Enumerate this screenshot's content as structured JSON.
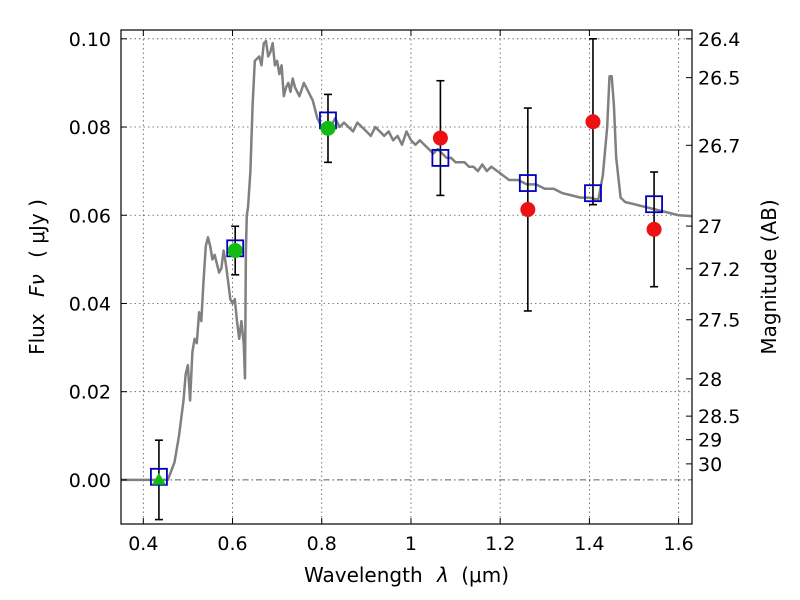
{
  "chart_data": {
    "type": "scatter",
    "xlabel_prefix": "Wavelength",
    "xlabel_symbol": "λ",
    "xlabel_unit": "(μm)",
    "ylabel_prefix": "Flux",
    "ylabel_symbol": "Fν",
    "ylabel_unit": "( μJy )",
    "y2label": "Magnitude (AB)",
    "xlim": [
      0.35,
      1.63
    ],
    "ylim": [
      -0.01,
      0.102
    ],
    "x_ticks": [
      {
        "value": 0.4,
        "label": "0.4"
      },
      {
        "value": 0.6,
        "label": "0.6"
      },
      {
        "value": 0.8,
        "label": "0.8"
      },
      {
        "value": 1.0,
        "label": "1"
      },
      {
        "value": 1.2,
        "label": "1.2"
      },
      {
        "value": 1.4,
        "label": "1.4"
      },
      {
        "value": 1.6,
        "label": "1.6"
      }
    ],
    "y_ticks": [
      {
        "value": 0.0,
        "label": "0.00"
      },
      {
        "value": 0.02,
        "label": "0.02"
      },
      {
        "value": 0.04,
        "label": "0.04"
      },
      {
        "value": 0.06,
        "label": "0.06"
      },
      {
        "value": 0.08,
        "label": "0.08"
      },
      {
        "value": 0.1,
        "label": "0.10"
      }
    ],
    "y2_ticks": [
      {
        "value": 26.4,
        "label": "26.4"
      },
      {
        "value": 26.5,
        "label": "26.5"
      },
      {
        "value": 26.7,
        "label": "26.7"
      },
      {
        "value": 27.0,
        "label": "27"
      },
      {
        "value": 27.2,
        "label": "27.2"
      },
      {
        "value": 27.5,
        "label": "27.5"
      },
      {
        "value": 28.0,
        "label": "28"
      },
      {
        "value": 28.5,
        "label": "28.5"
      },
      {
        "value": 29.0,
        "label": "29"
      },
      {
        "value": 30.0,
        "label": "30"
      }
    ],
    "grid": true,
    "colors": {
      "model": "#808080",
      "observed_optical": "#11bb11",
      "observed_nir": "#ee1111",
      "model_photometry": "#0000bb",
      "errorbar": "#000000"
    },
    "model_spectrum": [
      [
        0.35,
        0.0
      ],
      [
        0.44,
        0.0
      ],
      [
        0.455,
        0.0
      ],
      [
        0.47,
        0.004
      ],
      [
        0.48,
        0.01
      ],
      [
        0.49,
        0.018
      ],
      [
        0.495,
        0.024
      ],
      [
        0.5,
        0.026
      ],
      [
        0.505,
        0.018
      ],
      [
        0.51,
        0.029
      ],
      [
        0.515,
        0.032
      ],
      [
        0.52,
        0.031
      ],
      [
        0.525,
        0.038
      ],
      [
        0.53,
        0.036
      ],
      [
        0.535,
        0.045
      ],
      [
        0.54,
        0.053
      ],
      [
        0.545,
        0.055
      ],
      [
        0.55,
        0.053
      ],
      [
        0.555,
        0.05
      ],
      [
        0.56,
        0.051
      ],
      [
        0.565,
        0.049
      ],
      [
        0.57,
        0.047
      ],
      [
        0.575,
        0.048
      ],
      [
        0.58,
        0.052
      ],
      [
        0.585,
        0.049
      ],
      [
        0.59,
        0.045
      ],
      [
        0.595,
        0.041
      ],
      [
        0.6,
        0.04
      ],
      [
        0.605,
        0.041
      ],
      [
        0.61,
        0.036
      ],
      [
        0.615,
        0.032
      ],
      [
        0.62,
        0.036
      ],
      [
        0.625,
        0.031
      ],
      [
        0.628,
        0.023
      ],
      [
        0.63,
        0.052
      ],
      [
        0.632,
        0.06
      ],
      [
        0.635,
        0.062
      ],
      [
        0.64,
        0.07
      ],
      [
        0.645,
        0.085
      ],
      [
        0.65,
        0.095
      ],
      [
        0.66,
        0.096
      ],
      [
        0.665,
        0.094
      ],
      [
        0.67,
        0.099
      ],
      [
        0.675,
        0.0995
      ],
      [
        0.68,
        0.096
      ],
      [
        0.685,
        0.097
      ],
      [
        0.69,
        0.099
      ],
      [
        0.695,
        0.094
      ],
      [
        0.7,
        0.095
      ],
      [
        0.705,
        0.092
      ],
      [
        0.71,
        0.094
      ],
      [
        0.715,
        0.087
      ],
      [
        0.72,
        0.089
      ],
      [
        0.725,
        0.09
      ],
      [
        0.73,
        0.088
      ],
      [
        0.735,
        0.091
      ],
      [
        0.74,
        0.089
      ],
      [
        0.745,
        0.088
      ],
      [
        0.75,
        0.087
      ],
      [
        0.76,
        0.09
      ],
      [
        0.77,
        0.088
      ],
      [
        0.78,
        0.086
      ],
      [
        0.79,
        0.082
      ],
      [
        0.8,
        0.08
      ],
      [
        0.81,
        0.081
      ],
      [
        0.82,
        0.08
      ],
      [
        0.83,
        0.082
      ],
      [
        0.84,
        0.08
      ],
      [
        0.85,
        0.081
      ],
      [
        0.86,
        0.08
      ],
      [
        0.87,
        0.079
      ],
      [
        0.88,
        0.081
      ],
      [
        0.89,
        0.08
      ],
      [
        0.9,
        0.079
      ],
      [
        0.91,
        0.078
      ],
      [
        0.92,
        0.08
      ],
      [
        0.93,
        0.079
      ],
      [
        0.94,
        0.078
      ],
      [
        0.95,
        0.079
      ],
      [
        0.96,
        0.077
      ],
      [
        0.97,
        0.078
      ],
      [
        0.98,
        0.076
      ],
      [
        0.99,
        0.079
      ],
      [
        1.0,
        0.077
      ],
      [
        1.01,
        0.076
      ],
      [
        1.02,
        0.077
      ],
      [
        1.03,
        0.076
      ],
      [
        1.04,
        0.075
      ],
      [
        1.05,
        0.074
      ],
      [
        1.06,
        0.075
      ],
      [
        1.07,
        0.074
      ],
      [
        1.08,
        0.073
      ],
      [
        1.09,
        0.073
      ],
      [
        1.1,
        0.072
      ],
      [
        1.12,
        0.072
      ],
      [
        1.13,
        0.071
      ],
      [
        1.14,
        0.071
      ],
      [
        1.15,
        0.07
      ],
      [
        1.16,
        0.0715
      ],
      [
        1.17,
        0.07
      ],
      [
        1.18,
        0.071
      ],
      [
        1.2,
        0.0695
      ],
      [
        1.22,
        0.068
      ],
      [
        1.24,
        0.068
      ],
      [
        1.26,
        0.067
      ],
      [
        1.28,
        0.067
      ],
      [
        1.3,
        0.066
      ],
      [
        1.32,
        0.066
      ],
      [
        1.34,
        0.065
      ],
      [
        1.36,
        0.0645
      ],
      [
        1.38,
        0.064
      ],
      [
        1.4,
        0.064
      ],
      [
        1.42,
        0.0635
      ],
      [
        1.43,
        0.069
      ],
      [
        1.44,
        0.08
      ],
      [
        1.445,
        0.0915
      ],
      [
        1.45,
        0.0915
      ],
      [
        1.455,
        0.085
      ],
      [
        1.46,
        0.073
      ],
      [
        1.47,
        0.064
      ],
      [
        1.48,
        0.063
      ],
      [
        1.5,
        0.0625
      ],
      [
        1.52,
        0.062
      ],
      [
        1.54,
        0.0615
      ],
      [
        1.56,
        0.061
      ],
      [
        1.58,
        0.0605
      ],
      [
        1.6,
        0.06
      ],
      [
        1.63,
        0.0598
      ]
    ],
    "observed": [
      {
        "x": 0.435,
        "y": 0.0,
        "err": 0.009,
        "marker": "triangle",
        "color": "#11bb11"
      },
      {
        "x": 0.606,
        "y": 0.052,
        "err": 0.0055,
        "marker": "circle",
        "color": "#11bb11"
      },
      {
        "x": 0.814,
        "y": 0.0797,
        "err": 0.0077,
        "marker": "circle",
        "color": "#11bb11"
      },
      {
        "x": 1.066,
        "y": 0.0775,
        "err": 0.013,
        "marker": "circle",
        "color": "#ee1111"
      },
      {
        "x": 1.262,
        "y": 0.0613,
        "err": 0.023,
        "marker": "circle",
        "color": "#ee1111"
      },
      {
        "x": 1.408,
        "y": 0.0812,
        "err": 0.0188,
        "marker": "circle",
        "color": "#ee1111"
      },
      {
        "x": 1.545,
        "y": 0.0568,
        "err": 0.013,
        "marker": "circle",
        "color": "#ee1111"
      }
    ],
    "model_photometry": [
      {
        "x": 0.435,
        "y": 0.0007
      },
      {
        "x": 0.606,
        "y": 0.0525
      },
      {
        "x": 0.814,
        "y": 0.0815
      },
      {
        "x": 1.066,
        "y": 0.073
      },
      {
        "x": 1.262,
        "y": 0.0673
      },
      {
        "x": 1.408,
        "y": 0.065
      },
      {
        "x": 1.545,
        "y": 0.0625
      }
    ]
  }
}
